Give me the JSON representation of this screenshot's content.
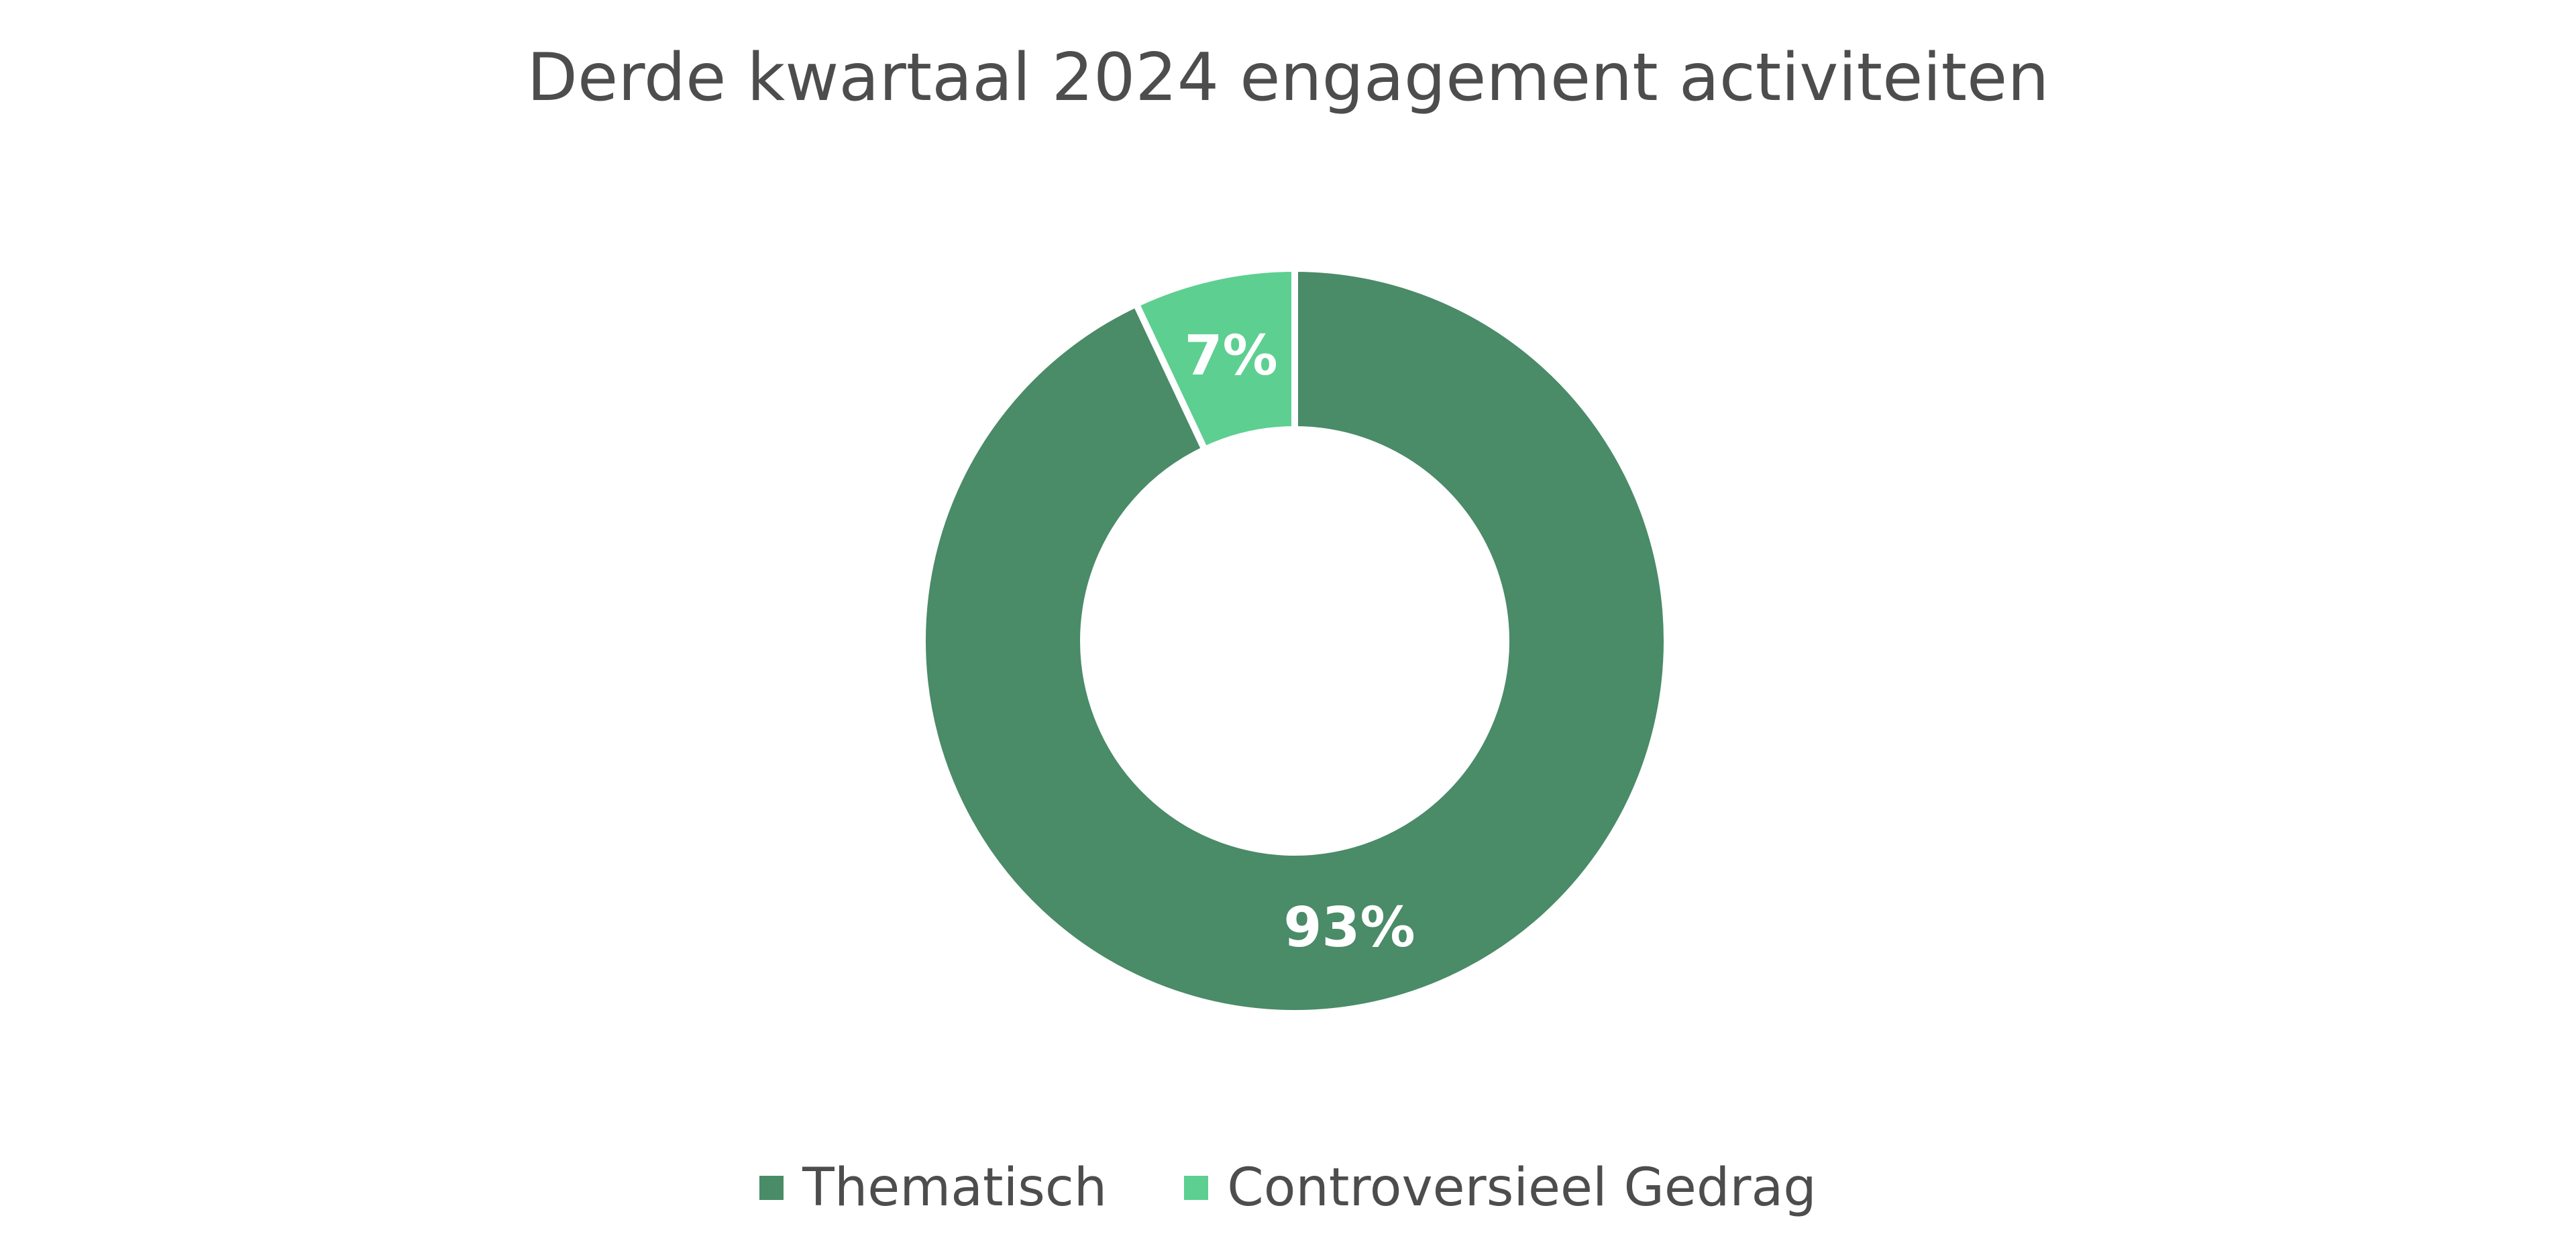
{
  "chart_data": {
    "type": "pie",
    "variant": "donut",
    "title": "Derde kwartaal 2024 engagement activiteiten",
    "categories": [
      "Thematisch",
      "Controversieel Gedrag"
    ],
    "values": [
      93,
      7
    ],
    "data_labels": [
      "93%",
      "7%"
    ],
    "unit": "%",
    "colors": [
      "#4a8b68",
      "#5dcf90"
    ],
    "legend_position": "bottom",
    "legend": [
      "Thematisch",
      "Controversieel Gedrag"
    ]
  }
}
